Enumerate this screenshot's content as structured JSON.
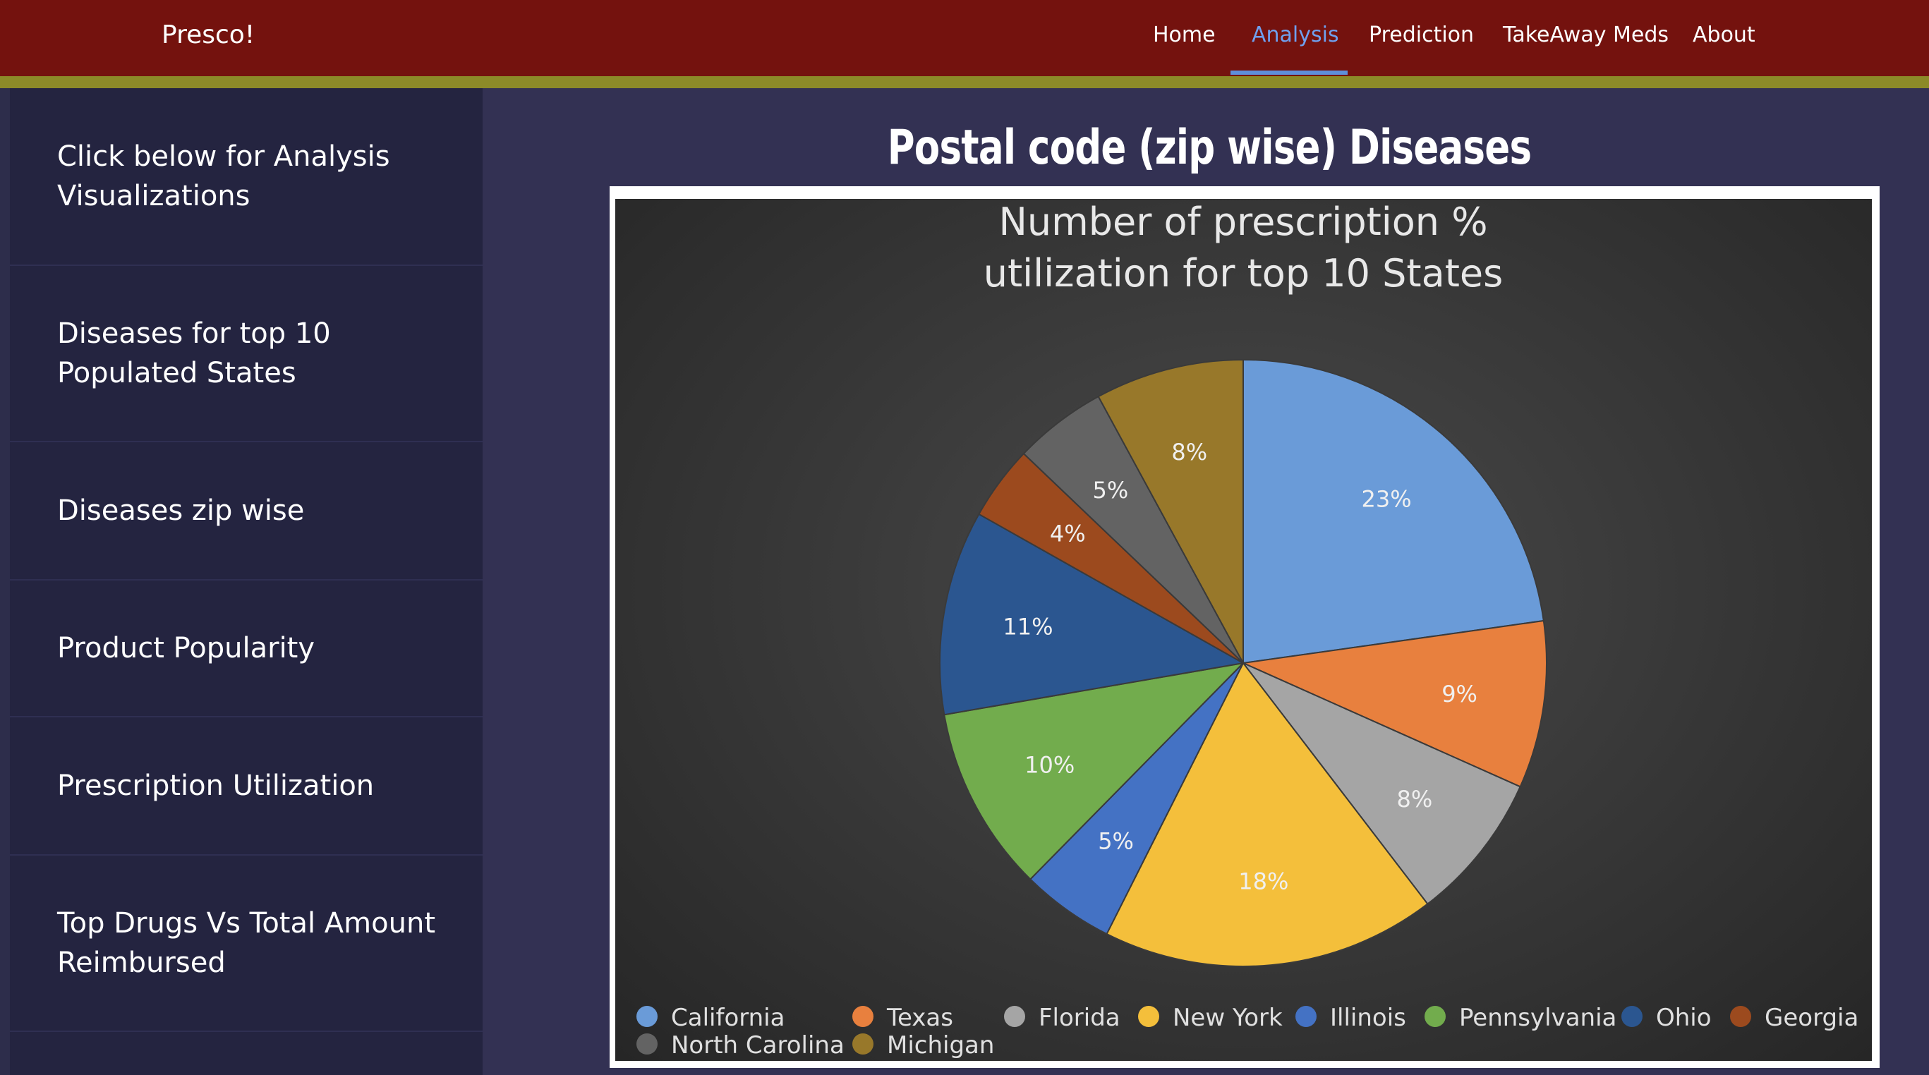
{
  "app": {
    "brand": "Presco!"
  },
  "nav": {
    "items": [
      {
        "label": "Home"
      },
      {
        "label": "Analysis",
        "active": true
      },
      {
        "label": "Prediction"
      },
      {
        "label": "TakeAway Meds"
      },
      {
        "label": "About"
      }
    ]
  },
  "sidebar": {
    "items": [
      {
        "label": "Click below for Analysis Visualizations"
      },
      {
        "label": "Diseases for top 10 Populated States"
      },
      {
        "label": "Diseases zip wise"
      },
      {
        "label": "Product Popularity"
      },
      {
        "label": "Prescription Utilization"
      },
      {
        "label": "Top Drugs Vs Total Amount Reimbursed"
      }
    ]
  },
  "main": {
    "title": "Postal code (zip wise) Diseases"
  },
  "chart_data": {
    "type": "pie",
    "title": "Number of prescription % utilization for top 10 States",
    "legend_position": "bottom",
    "unit": "%",
    "slices": [
      {
        "name": "California",
        "value": 23,
        "label": "23%",
        "color": "#6a9bd8"
      },
      {
        "name": "Texas",
        "value": 9,
        "label": "9%",
        "color": "#e8803e"
      },
      {
        "name": "Florida",
        "value": 8,
        "label": "8%",
        "color": "#a5a5a5"
      },
      {
        "name": "New York",
        "value": 18,
        "label": "18%",
        "color": "#f4bf3b"
      },
      {
        "name": "Illinois",
        "value": 5,
        "label": "5%",
        "color": "#4472c4"
      },
      {
        "name": "Pennsylvania",
        "value": 10,
        "label": "10%",
        "color": "#72ac4d"
      },
      {
        "name": "Ohio",
        "value": 11,
        "label": "11%",
        "color": "#2b5690"
      },
      {
        "name": "Georgia",
        "value": 4,
        "label": "4%",
        "color": "#9c4a1e"
      },
      {
        "name": "North Carolina",
        "value": 5,
        "label": "5%",
        "color": "#636363"
      },
      {
        "name": "Michigan",
        "value": 8,
        "label": "8%",
        "color": "#98782a"
      }
    ]
  }
}
